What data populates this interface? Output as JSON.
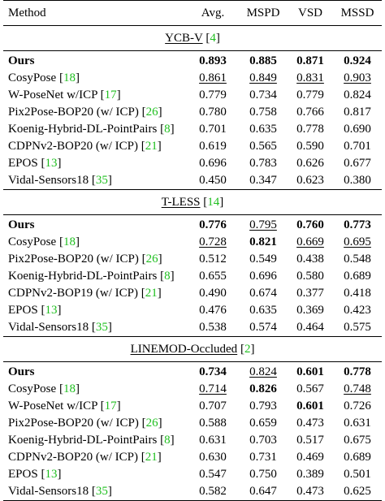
{
  "header": {
    "method": "Method",
    "avg": "Avg.",
    "mspd": "MSPD",
    "vsd": "VSD",
    "mssd": "MSSD"
  },
  "sections": [
    {
      "name": "YCB-V",
      "ref": "4",
      "rows": [
        {
          "method": "Ours",
          "ref": "",
          "avg": "0.893",
          "mspd": "0.885",
          "vsd": "0.871",
          "mssd": "0.924",
          "bold": [
            "method",
            "avg",
            "mspd",
            "vsd",
            "mssd"
          ],
          "underline": []
        },
        {
          "method": "CosyPose",
          "ref": "18",
          "avg": "0.861",
          "mspd": "0.849",
          "vsd": "0.831",
          "mssd": "0.903",
          "bold": [],
          "underline": [
            "avg",
            "mspd",
            "vsd",
            "mssd"
          ]
        },
        {
          "method": "W-PoseNet w/ICP",
          "ref": "17",
          "avg": "0.779",
          "mspd": "0.734",
          "vsd": "0.779",
          "mssd": "0.824",
          "bold": [],
          "underline": []
        },
        {
          "method": "Pix2Pose-BOP20 (w/ ICP)",
          "ref": "26",
          "avg": "0.780",
          "mspd": "0.758",
          "vsd": "0.766",
          "mssd": "0.817",
          "bold": [],
          "underline": []
        },
        {
          "method": "Koenig-Hybrid-DL-PointPairs",
          "ref": "8",
          "avg": "0.701",
          "mspd": "0.635",
          "vsd": "0.778",
          "mssd": "0.690",
          "bold": [],
          "underline": []
        },
        {
          "method": "CDPNv2-BOP20 (w/ ICP)",
          "ref": "21",
          "avg": "0.619",
          "mspd": "0.565",
          "vsd": "0.590",
          "mssd": "0.701",
          "bold": [],
          "underline": []
        },
        {
          "method": "EPOS",
          "ref": "13",
          "avg": "0.696",
          "mspd": "0.783",
          "vsd": "0.626",
          "mssd": "0.677",
          "bold": [],
          "underline": []
        },
        {
          "method": "Vidal-Sensors18",
          "ref": "35",
          "avg": "0.450",
          "mspd": "0.347",
          "vsd": "0.623",
          "mssd": "0.380",
          "bold": [],
          "underline": []
        }
      ]
    },
    {
      "name": "T-LESS",
      "ref": "14",
      "rows": [
        {
          "method": "Ours",
          "ref": "",
          "avg": "0.776",
          "mspd": "0.795",
          "vsd": "0.760",
          "mssd": "0.773",
          "bold": [
            "method",
            "avg",
            "vsd",
            "mssd"
          ],
          "underline": [
            "mspd"
          ]
        },
        {
          "method": "CosyPose",
          "ref": "18",
          "avg": "0.728",
          "mspd": "0.821",
          "vsd": "0.669",
          "mssd": "0.695",
          "bold": [
            "mspd"
          ],
          "underline": [
            "avg",
            "vsd",
            "mssd"
          ]
        },
        {
          "method": "Pix2Pose-BOP20 (w/ ICP)",
          "ref": "26",
          "avg": "0.512",
          "mspd": "0.549",
          "vsd": "0.438",
          "mssd": "0.548",
          "bold": [],
          "underline": []
        },
        {
          "method": "Koenig-Hybrid-DL-PointPairs",
          "ref": "8",
          "avg": "0.655",
          "mspd": "0.696",
          "vsd": "0.580",
          "mssd": "0.689",
          "bold": [],
          "underline": []
        },
        {
          "method": "CDPNv2-BOP19 (w/ ICP)",
          "ref": "21",
          "avg": "0.490",
          "mspd": "0.674",
          "vsd": "0.377",
          "mssd": "0.418",
          "bold": [],
          "underline": []
        },
        {
          "method": "EPOS",
          "ref": "13",
          "avg": "0.476",
          "mspd": "0.635",
          "vsd": "0.369",
          "mssd": "0.423",
          "bold": [],
          "underline": []
        },
        {
          "method": "Vidal-Sensors18",
          "ref": "35",
          "avg": "0.538",
          "mspd": "0.574",
          "vsd": "0.464",
          "mssd": "0.575",
          "bold": [],
          "underline": []
        }
      ]
    },
    {
      "name": "LINEMOD-Occluded",
      "ref": "2",
      "rows": [
        {
          "method": "Ours",
          "ref": "",
          "avg": "0.734",
          "mspd": "0.824",
          "vsd": "0.601",
          "mssd": "0.778",
          "bold": [
            "method",
            "avg",
            "vsd",
            "mssd"
          ],
          "underline": [
            "mspd"
          ]
        },
        {
          "method": "CosyPose",
          "ref": "18",
          "avg": "0.714",
          "mspd": "0.826",
          "vsd": "0.567",
          "mssd": "0.748",
          "bold": [
            "mspd"
          ],
          "underline": [
            "avg",
            "mssd"
          ]
        },
        {
          "method": "W-PoseNet w/ICP",
          "ref": "17",
          "avg": "0.707",
          "mspd": "0.793",
          "vsd": "0.601",
          "mssd": "0.726",
          "bold": [
            "vsd"
          ],
          "underline": []
        },
        {
          "method": "Pix2Pose-BOP20 (w/ ICP)",
          "ref": "26",
          "avg": "0.588",
          "mspd": "0.659",
          "vsd": "0.473",
          "mssd": "0.631",
          "bold": [],
          "underline": []
        },
        {
          "method": "Koenig-Hybrid-DL-PointPairs",
          "ref": "8",
          "avg": "0.631",
          "mspd": "0.703",
          "vsd": "0.517",
          "mssd": "0.675",
          "bold": [],
          "underline": []
        },
        {
          "method": "CDPNv2-BOP20 (w/ ICP)",
          "ref": "21",
          "avg": "0.630",
          "mspd": "0.731",
          "vsd": "0.469",
          "mssd": "0.689",
          "bold": [],
          "underline": []
        },
        {
          "method": "EPOS",
          "ref": "13",
          "avg": "0.547",
          "mspd": "0.750",
          "vsd": "0.389",
          "mssd": "0.501",
          "bold": [],
          "underline": []
        },
        {
          "method": "Vidal-Sensors18",
          "ref": "35",
          "avg": "0.582",
          "mspd": "0.647",
          "vsd": "0.473",
          "mssd": "0.625",
          "bold": [],
          "underline": []
        }
      ]
    }
  ],
  "colors": {
    "ref_link": "#1fbf1f",
    "text": "#000000",
    "background": "#ffffff"
  }
}
